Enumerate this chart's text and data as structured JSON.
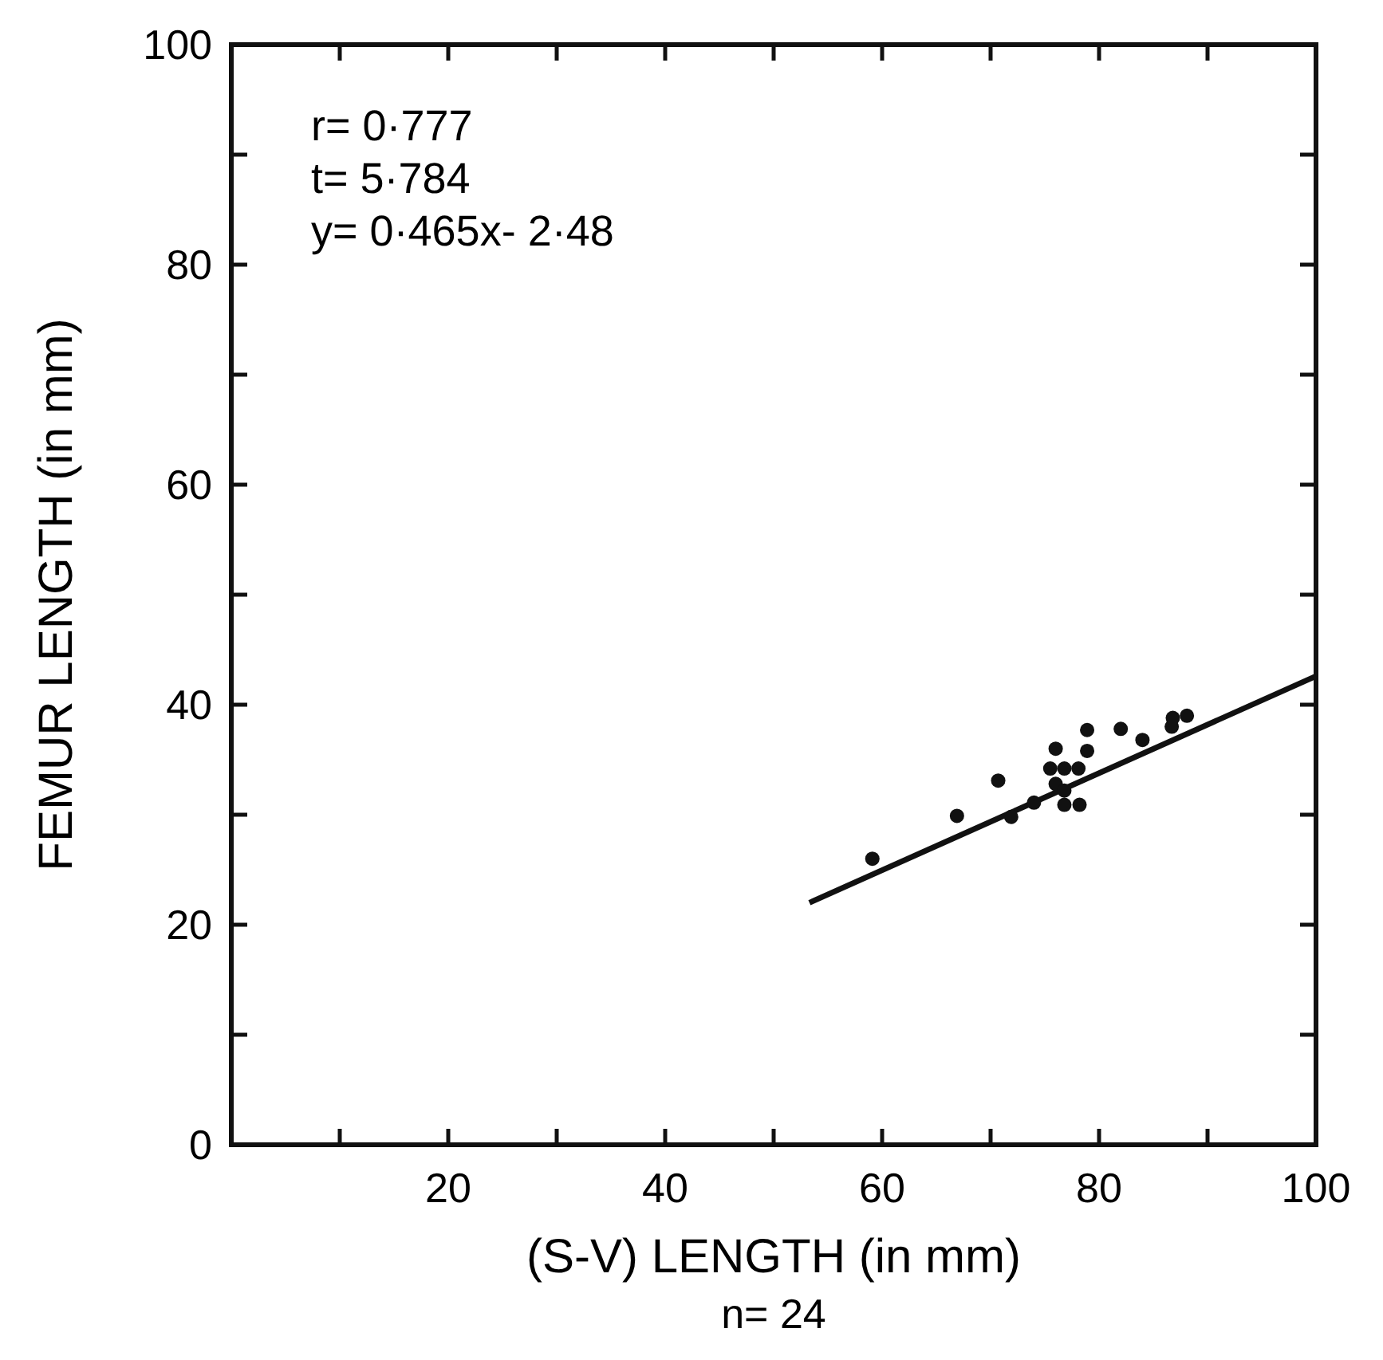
{
  "chart_data": {
    "type": "scatter",
    "xlabel": "(S-V) LENGTH (in mm)",
    "ylabel": "FEMUR LENGTH (in mm)",
    "xlim": [
      0,
      100
    ],
    "ylim": [
      0,
      100
    ],
    "xticks": [
      {
        "value": 10,
        "label": null
      },
      20,
      {
        "value": 30,
        "label": null
      },
      40,
      {
        "value": 50,
        "label": null
      },
      60,
      {
        "value": 70,
        "label": null
      },
      80,
      {
        "value": 90,
        "label": null
      },
      100
    ],
    "yticks": [
      0,
      {
        "value": 10,
        "label": null
      },
      20,
      {
        "value": 30,
        "label": null
      },
      40,
      {
        "value": 50,
        "label": null
      },
      60,
      {
        "value": 70,
        "label": null
      },
      80,
      {
        "value": 90,
        "label": null
      },
      100
    ],
    "grid": false,
    "marker": "circle",
    "series": [
      {
        "color": "#111111",
        "x": [
          59.1,
          66.9,
          70.7,
          71.9,
          74.0,
          76.0,
          75.5,
          76.8,
          78.1,
          76.0,
          76.8,
          76.8,
          78.2,
          78.9,
          78.9,
          82.0,
          84.0,
          86.7,
          86.8,
          88.1
        ],
        "values": [
          26.0,
          29.9,
          33.1,
          29.8,
          31.1,
          36.0,
          34.2,
          34.2,
          34.2,
          32.8,
          32.2,
          30.9,
          30.9,
          37.7,
          35.8,
          37.8,
          36.8,
          38.0,
          38.8,
          39.0
        ]
      },
      {
        "type": "line",
        "color": "#111111",
        "x": [
          53.3,
          100
        ],
        "values": [
          22.0,
          42.6
        ],
        "marker": "none",
        "line_style": "solid"
      }
    ],
    "annotations": [
      "r= 0·777",
      "t= 5·784",
      "y= 0·465x- 2·48",
      "n= 24"
    ]
  }
}
